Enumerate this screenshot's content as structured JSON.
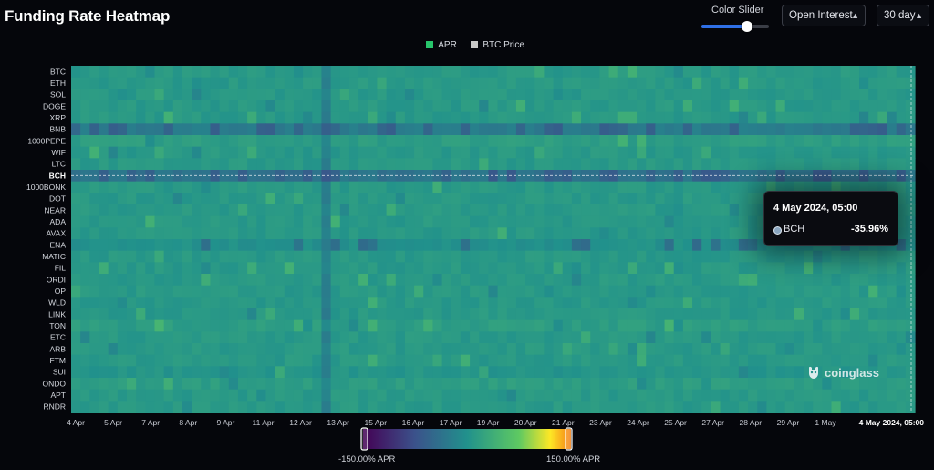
{
  "header": {
    "title": "Funding Rate Heatmap",
    "color_slider_label": "Color Slider",
    "color_slider_value": 0.68,
    "metric_select": "Open Interest",
    "range_select": "30 day",
    "chevron_icon": "chevron-up-down-icon"
  },
  "legend": [
    {
      "label": "APR",
      "color": "#27c46b"
    },
    {
      "label": "BTC Price",
      "color": "#c8c8c8"
    }
  ],
  "tooltip": {
    "time": "4 May 2024, 05:00",
    "coin": "BCH",
    "value": "-35.96%"
  },
  "colorbar": {
    "min_label": "-150.00% APR",
    "max_label": "150.00% APR",
    "min": -150,
    "max": 150
  },
  "watermark": {
    "text": "coinglass",
    "icon": "coinglass-logo-icon"
  },
  "chart_data": {
    "type": "heatmap",
    "title": "Funding Rate Heatmap",
    "x_ticks": [
      "4 Apr",
      "5 Apr",
      "7 Apr",
      "8 Apr",
      "9 Apr",
      "11 Apr",
      "12 Apr",
      "13 Apr",
      "15 Apr",
      "16 Apr",
      "17 Apr",
      "19 Apr",
      "20 Apr",
      "21 Apr",
      "23 Apr",
      "24 Apr",
      "25 Apr",
      "27 Apr",
      "28 Apr",
      "29 Apr",
      "1 May"
    ],
    "x_highlight": "4 May 2024, 05:00",
    "rows": [
      "BTC",
      "ETH",
      "SOL",
      "DOGE",
      "XRP",
      "BNB",
      "1000PEPE",
      "WIF",
      "LTC",
      "BCH",
      "1000BONK",
      "DOT",
      "NEAR",
      "ADA",
      "AVAX",
      "ENA",
      "MATIC",
      "FIL",
      "ORDI",
      "OP",
      "WLD",
      "LINK",
      "TON",
      "ETC",
      "ARB",
      "FTM",
      "SUI",
      "ONDO",
      "APT",
      "RNDR"
    ],
    "highlight_row": "BCH",
    "value_unit": "% APR",
    "value_range": [
      -150,
      150
    ],
    "approximate_values": {
      "BTC": 10,
      "ETH": 10,
      "SOL": 10,
      "DOGE": 10,
      "XRP": 10,
      "BNB": -25,
      "1000PEPE": 15,
      "WIF": 10,
      "LTC": 10,
      "BCH": -36,
      "1000BONK": 10,
      "DOT": 10,
      "NEAR": 10,
      "ADA": 10,
      "AVAX": 10,
      "ENA": 0,
      "MATIC": 10,
      "FIL": 10,
      "ORDI": 10,
      "OP": 10,
      "WLD": 10,
      "LINK": 10,
      "TON": 15,
      "ETC": 10,
      "ARB": 10,
      "FTM": 10,
      "SUI": 5,
      "ONDO": 15,
      "APT": 10,
      "RNDR": 10
    }
  }
}
